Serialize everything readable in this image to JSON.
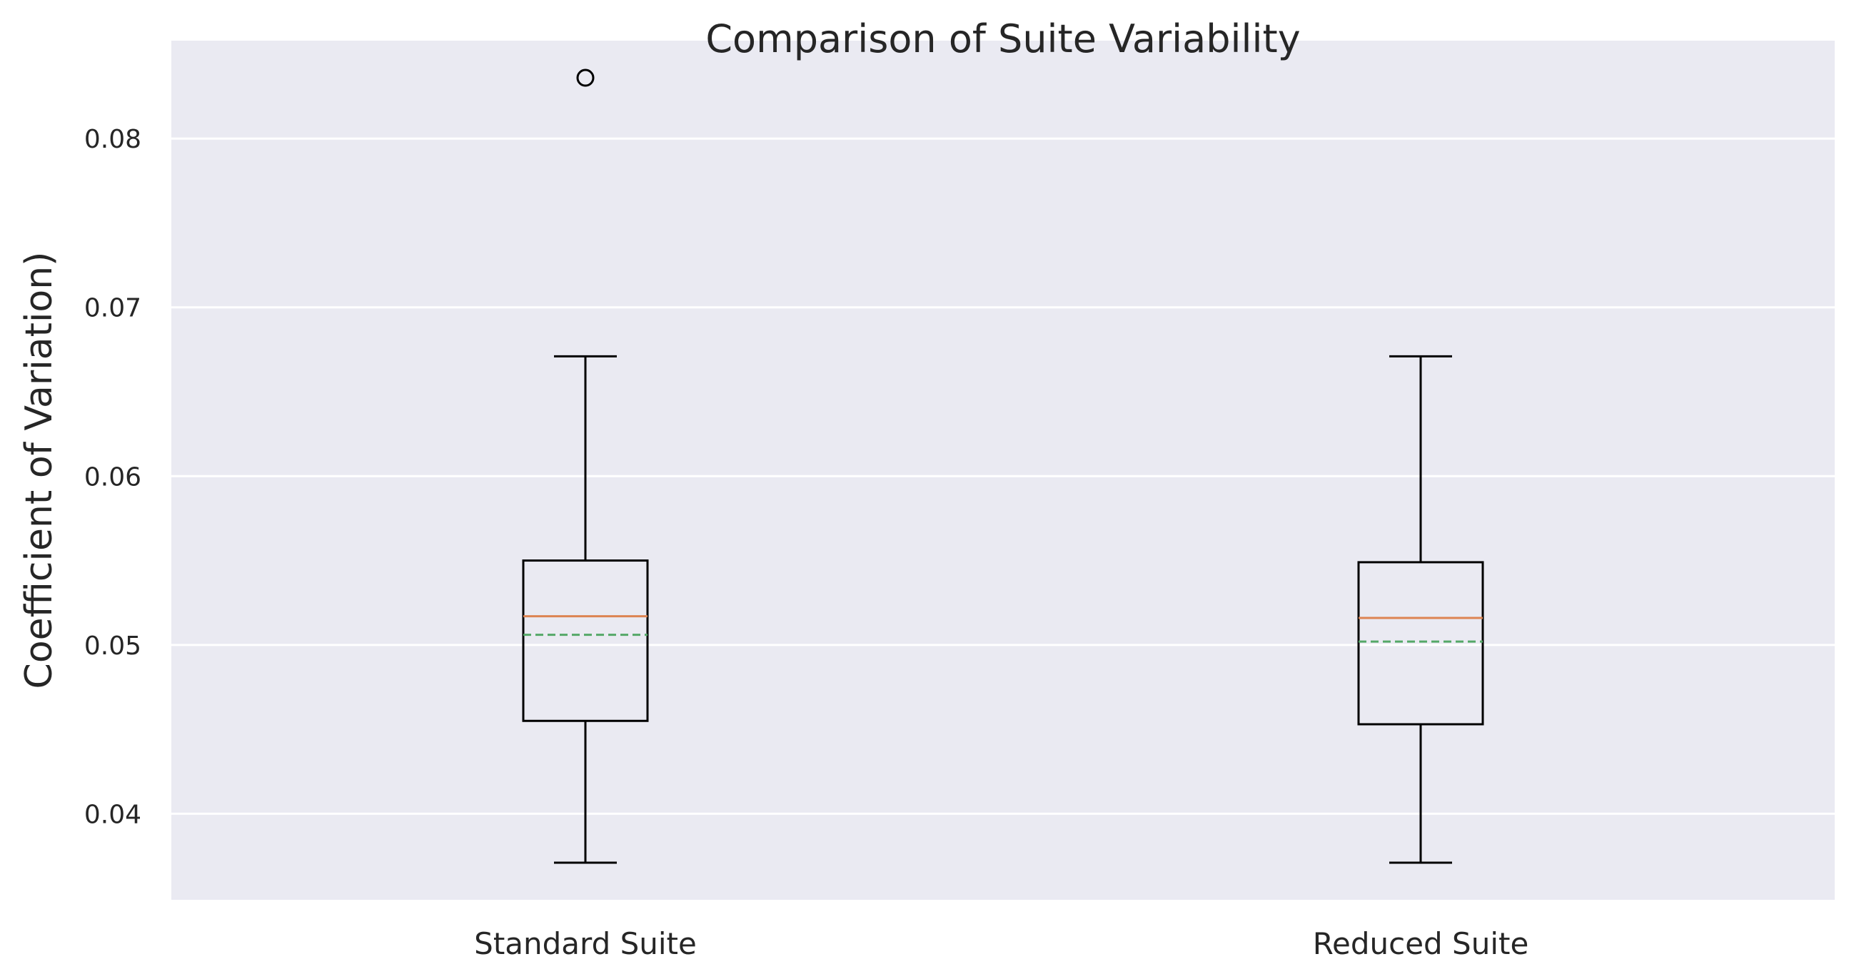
{
  "chart_data": {
    "type": "boxplot",
    "title": "Comparison of Suite Variability",
    "xlabel": "",
    "ylabel": "Coefficient of Variation)",
    "ylim": [
      0.0349,
      0.0858
    ],
    "yticks": [
      0.04,
      0.05,
      0.06,
      0.07,
      0.08
    ],
    "ytick_labels": [
      "0.04",
      "0.05",
      "0.06",
      "0.07",
      "0.08"
    ],
    "categories": [
      "Standard Suite",
      "Reduced Suite"
    ],
    "boxes": [
      {
        "name": "Standard Suite",
        "whisker_low": 0.0371,
        "q1": 0.0455,
        "median": 0.0517,
        "mean": 0.0506,
        "q3": 0.055,
        "whisker_high": 0.0671,
        "outliers": [
          0.0836
        ]
      },
      {
        "name": "Reduced Suite",
        "whisker_low": 0.0371,
        "q1": 0.0453,
        "median": 0.0516,
        "mean": 0.0502,
        "q3": 0.0549,
        "whisker_high": 0.0671,
        "outliers": []
      }
    ],
    "grid": true,
    "colors": {
      "plot_background": "#eaeaf2",
      "grid": "#ffffff",
      "box": "#000000",
      "median": "#dd8452",
      "mean": "#55a868"
    }
  }
}
